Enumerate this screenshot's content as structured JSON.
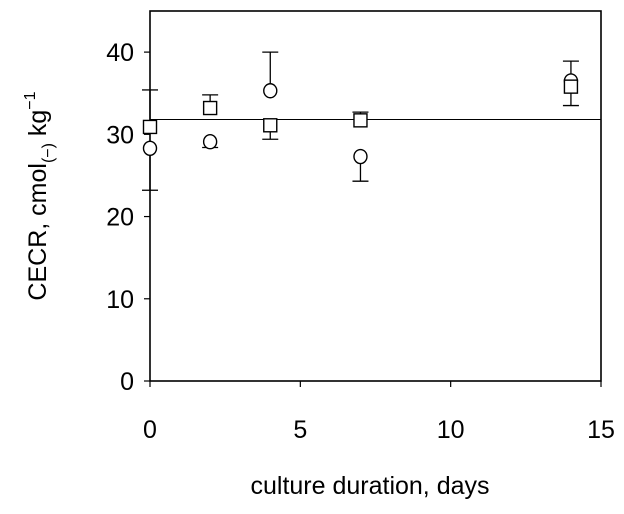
{
  "chart_data": {
    "type": "scatter",
    "title": "",
    "xlabel": "culture duration, days",
    "ylabel": {
      "main": "CECR, cmol",
      "subscript": "(−)",
      "unit_base": " kg",
      "unit_exp": "−1"
    },
    "xlim": [
      0,
      15
    ],
    "ylim": [
      0,
      45
    ],
    "x_ticks": [
      0,
      5,
      10,
      15
    ],
    "x_tick_labels": [
      "0",
      "5",
      "10",
      "15"
    ],
    "y_ticks": [
      0,
      10,
      20,
      30,
      40
    ],
    "y_tick_labels": [
      "0",
      "10",
      "20",
      "30",
      "40"
    ],
    "grid": false,
    "legend": "none",
    "reference_line": {
      "y": 31.8
    },
    "series": [
      {
        "marker": "circle",
        "color": "#000000",
        "points": [
          {
            "x": 0,
            "y": 28.3,
            "err_lo": 5.1,
            "err_hi": 0
          },
          {
            "x": 2,
            "y": 29.1,
            "err_lo": 0.7,
            "err_hi": 0
          },
          {
            "x": 4,
            "y": 35.3,
            "err_lo": 0,
            "err_hi": 4.7
          },
          {
            "x": 7,
            "y": 27.3,
            "err_lo": 3.0,
            "err_hi": 0
          },
          {
            "x": 14,
            "y": 36.5,
            "err_lo": 0,
            "err_hi": 2.4
          }
        ]
      },
      {
        "marker": "square",
        "color": "#000000",
        "points": [
          {
            "x": 0,
            "y": 30.9,
            "err_lo": 0,
            "err_hi": 4.5
          },
          {
            "x": 2,
            "y": 33.2,
            "err_lo": 0,
            "err_hi": 1.6
          },
          {
            "x": 4,
            "y": 31.1,
            "err_lo": 1.7,
            "err_hi": 0
          },
          {
            "x": 7,
            "y": 31.7,
            "err_lo": 0,
            "err_hi": 1.0
          },
          {
            "x": 14,
            "y": 35.8,
            "err_lo": 2.3,
            "err_hi": 0
          }
        ]
      }
    ]
  }
}
